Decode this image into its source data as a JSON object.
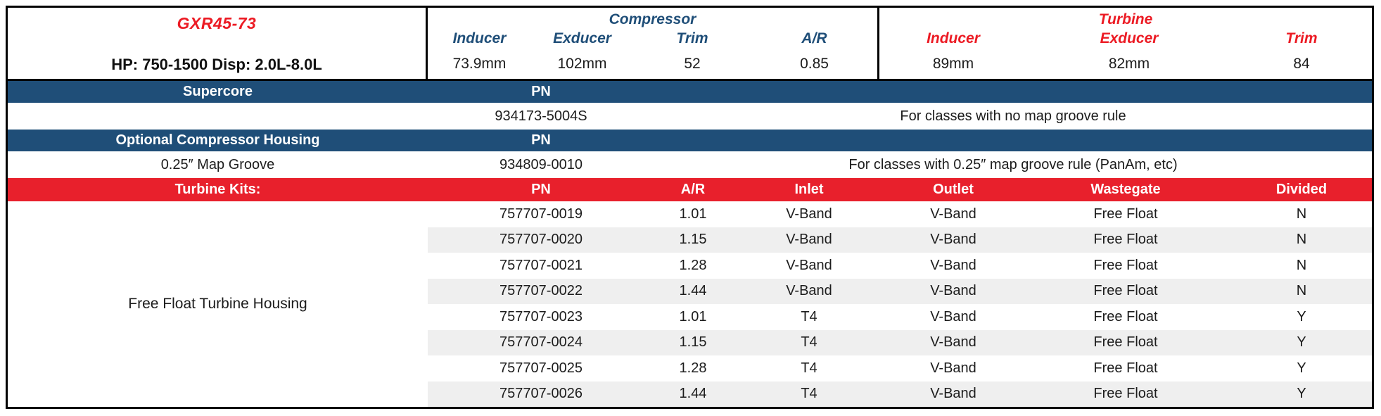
{
  "product": {
    "model": "GXR45-73",
    "hp_disp": "HP: 750-1500 Disp: 2.0L-8.0L"
  },
  "compressor": {
    "title": "Compressor",
    "headers": [
      "Inducer",
      "Exducer",
      "Trim",
      "A/R"
    ],
    "values": [
      "73.9mm",
      "102mm",
      "52",
      "0.85"
    ]
  },
  "turbine": {
    "title": "Turbine",
    "headers": [
      "Inducer",
      "Exducer",
      "Trim"
    ],
    "values": [
      "89mm",
      "82mm",
      "84"
    ]
  },
  "supercore": {
    "label": "Supercore",
    "pn_header": "PN",
    "pn": "934173-5004S",
    "note": "For classes with no map groove rule"
  },
  "optional_housing": {
    "label": "Optional Compressor Housing",
    "pn_header": "PN",
    "name": "0.25″ Map Groove",
    "pn": "934809-0010",
    "note": "For classes with 0.25″ map groove rule (PanAm, etc)"
  },
  "turbine_kits": {
    "label": "Turbine Kits:",
    "headers": [
      "PN",
      "A/R",
      "Inlet",
      "Outlet",
      "Wastegate",
      "Divided"
    ],
    "housing_label": "Free Float Turbine Housing",
    "rows": [
      {
        "pn": "757707-0019",
        "ar": "1.01",
        "inlet": "V-Band",
        "outlet": "V-Band",
        "wastegate": "Free Float",
        "divided": "N"
      },
      {
        "pn": "757707-0020",
        "ar": "1.15",
        "inlet": "V-Band",
        "outlet": "V-Band",
        "wastegate": "Free Float",
        "divided": "N"
      },
      {
        "pn": "757707-0021",
        "ar": "1.28",
        "inlet": "V-Band",
        "outlet": "V-Band",
        "wastegate": "Free Float",
        "divided": "N"
      },
      {
        "pn": "757707-0022",
        "ar": "1.44",
        "inlet": "V-Band",
        "outlet": "V-Band",
        "wastegate": "Free Float",
        "divided": "N"
      },
      {
        "pn": "757707-0023",
        "ar": "1.01",
        "inlet": "T4",
        "outlet": "V-Band",
        "wastegate": "Free Float",
        "divided": "Y"
      },
      {
        "pn": "757707-0024",
        "ar": "1.15",
        "inlet": "T4",
        "outlet": "V-Band",
        "wastegate": "Free Float",
        "divided": "Y"
      },
      {
        "pn": "757707-0025",
        "ar": "1.28",
        "inlet": "T4",
        "outlet": "V-Band",
        "wastegate": "Free Float",
        "divided": "Y"
      },
      {
        "pn": "757707-0026",
        "ar": "1.44",
        "inlet": "T4",
        "outlet": "V-Band",
        "wastegate": "Free Float",
        "divided": "Y"
      }
    ]
  },
  "colors": {
    "band_blue": "#1f4e78",
    "band_red": "#e8202c",
    "text_red": "#ec1b24",
    "text_blue": "#1f4e78",
    "row_stripe": "#efefef",
    "border_black": "#000000"
  }
}
